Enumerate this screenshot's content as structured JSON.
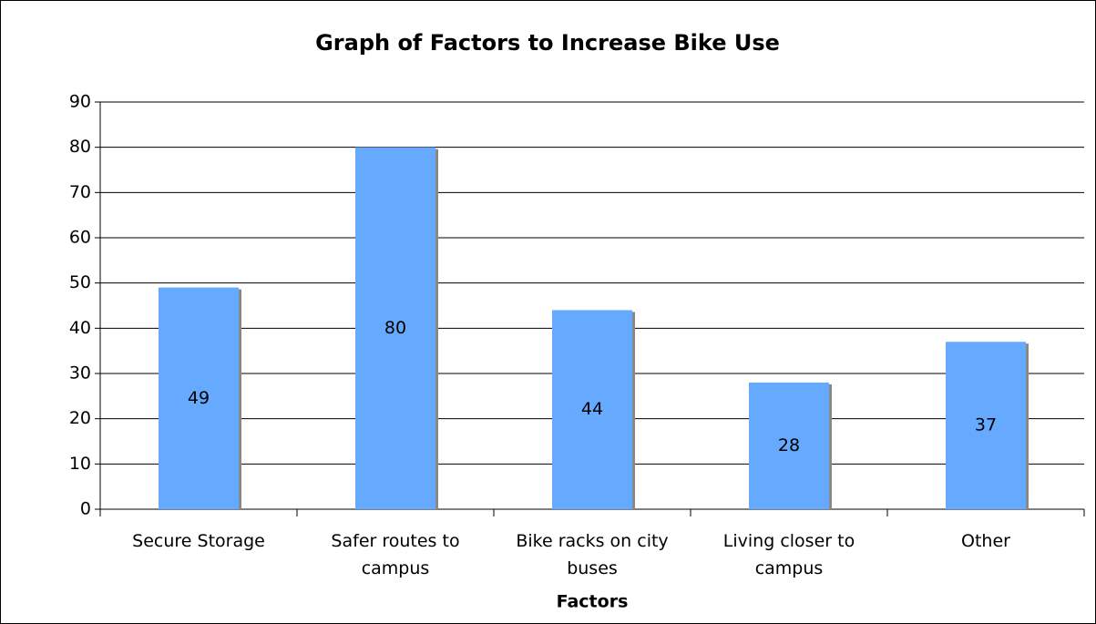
{
  "chart_data": {
    "type": "bar",
    "title": "Graph of Factors to Increase Bike Use",
    "x_label": "Factors",
    "categories": [
      "Secure Storage",
      "Safer routes to campus",
      "Bike racks on city buses",
      "Living closer to campus",
      "Other"
    ],
    "values": [
      49,
      80,
      44,
      28,
      37
    ],
    "color": "#66aaff",
    "ylim": [
      0,
      90
    ],
    "yticks": [
      0,
      10,
      20,
      30,
      40,
      50,
      60,
      70,
      80,
      90
    ],
    "grid": true
  }
}
